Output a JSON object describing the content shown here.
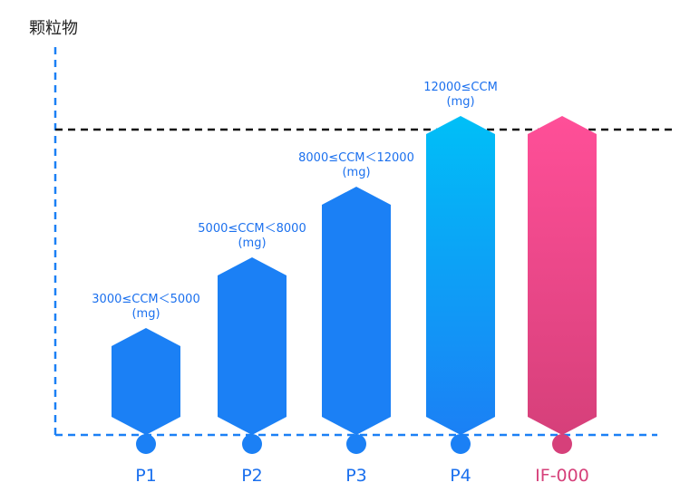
{
  "chart_data": {
    "type": "bar",
    "title": "",
    "ylabel": "颗粒物",
    "xlabel": "",
    "categories": [
      "P1",
      "P2",
      "P3",
      "P4",
      "IF-000"
    ],
    "values": [
      1,
      2,
      3,
      4,
      4
    ],
    "ylim": [
      0,
      4
    ],
    "reference_line_value": 4,
    "labels": [
      {
        "range": "3000≤CCM＜5000",
        "unit": "(mg)"
      },
      {
        "range": "5000≤CCM＜8000",
        "unit": "(mg)"
      },
      {
        "range": "8000≤CCM＜12000",
        "unit": "(mg)"
      },
      {
        "range": "12000≤CCM",
        "unit": "(mg)"
      },
      {
        "range": "",
        "unit": ""
      }
    ],
    "colors": {
      "blue": "#1b80f5",
      "sky_top": "#00bff7",
      "sky_bottom": "#1b80f5",
      "pink_top": "#ff4f98",
      "pink_bottom": "#d6407a",
      "axis": "#1b80f5",
      "reference": "#111111",
      "label_blue": "#1b70ee",
      "label_pink": "#d6407a"
    }
  }
}
